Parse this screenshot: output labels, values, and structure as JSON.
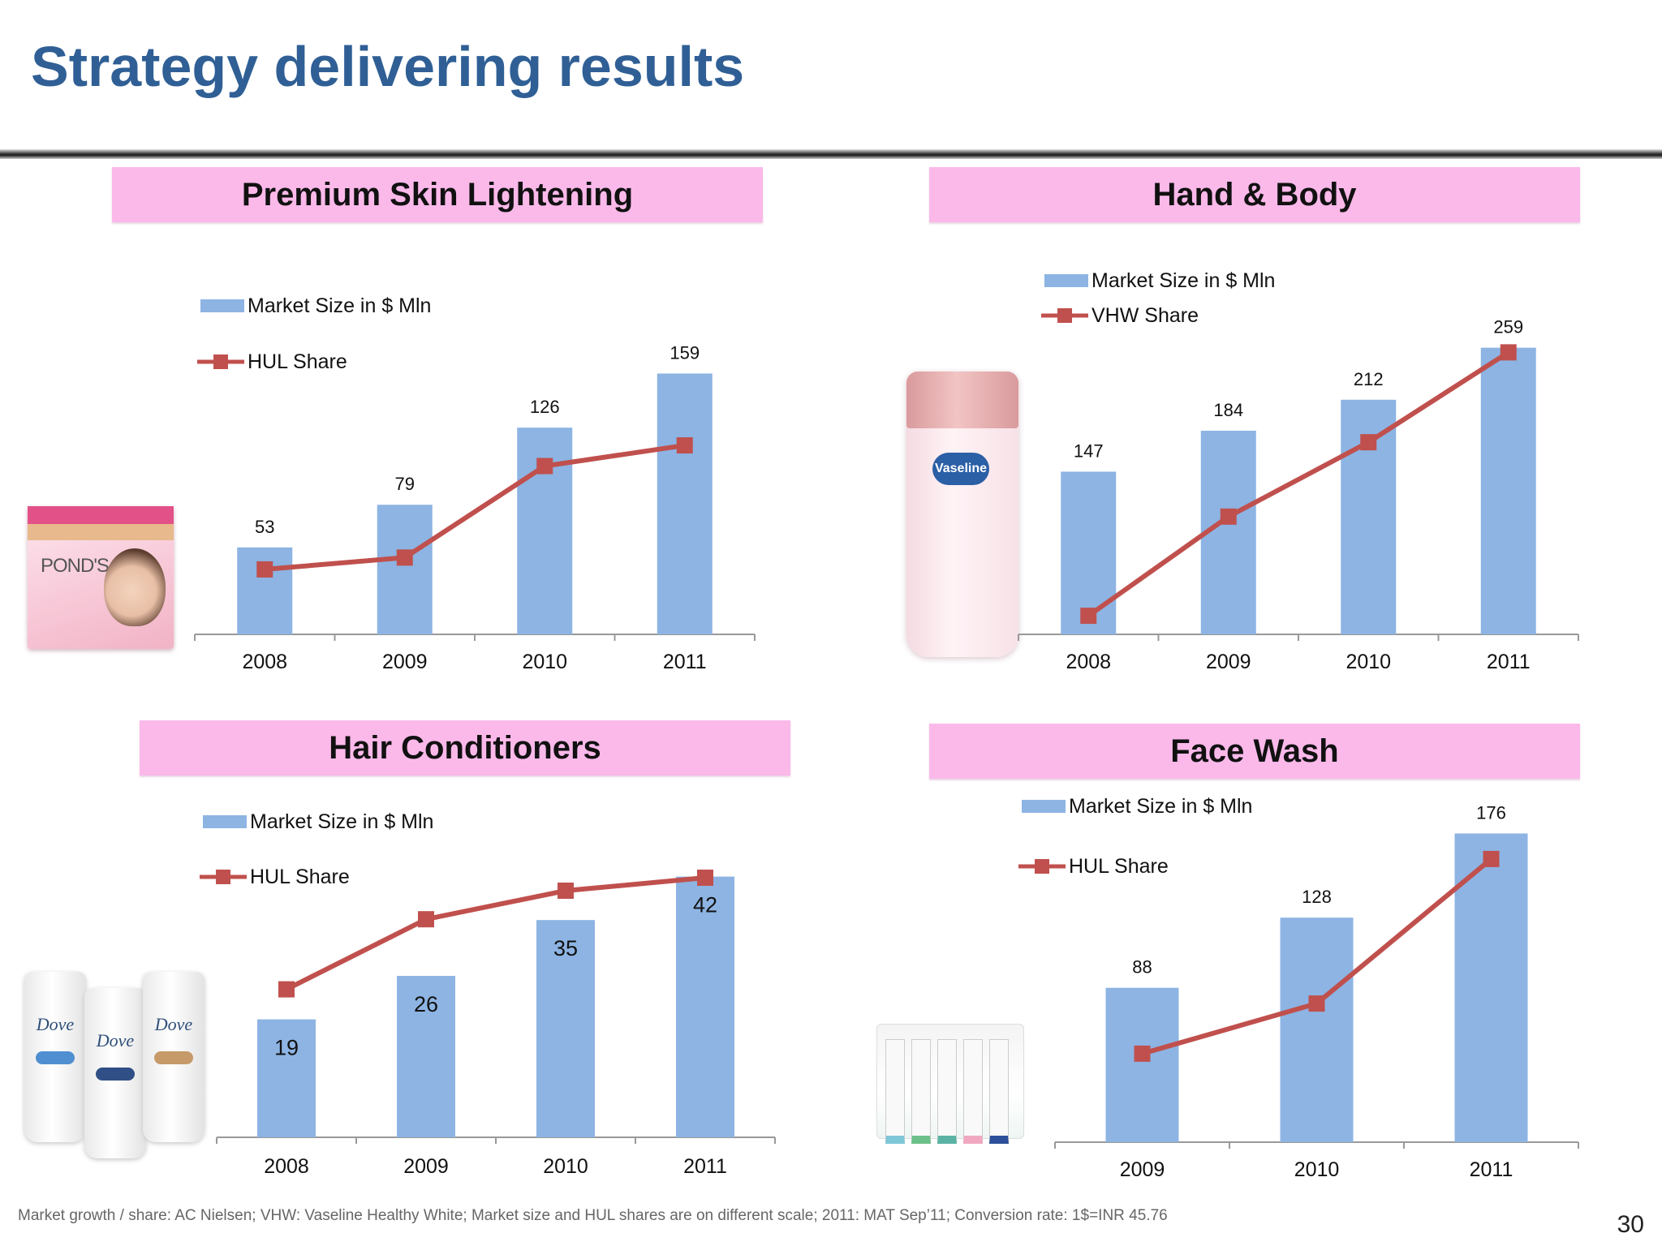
{
  "slide": {
    "title": "Strategy delivering results",
    "footnote": "Market  growth / share: AC Nielsen; VHW: Vaseline Healthy White; Market size and HUL shares are on different scale; 2011: MAT Sep’11; Conversion rate: 1$=INR 45.76",
    "page_number": "30"
  },
  "products": {
    "ponds_brand": "POND'S",
    "vaseline_brand": "Vaseline",
    "dove_brand": "Dove"
  },
  "colors": {
    "bar": "#8db4e3",
    "line": "#c0504d",
    "heading_bg": "#fbb9ea",
    "title": "#2f5f95"
  },
  "chart_data": [
    {
      "type": "bar",
      "title": "Premium Skin Lightening",
      "categories": [
        "2008",
        "2009",
        "2010",
        "2011"
      ],
      "series": [
        {
          "name": "Market Size in $ Mln",
          "type": "bar",
          "values": [
            53,
            79,
            126,
            159
          ]
        },
        {
          "name": "HUL Share",
          "type": "line",
          "values": [
            22,
            26,
            57,
            64
          ]
        }
      ],
      "ylim": [
        0,
        180
      ],
      "line_ylim": [
        0,
        100
      ],
      "legend": "top-left",
      "grid": false,
      "label_position": "above"
    },
    {
      "type": "bar",
      "title": "Hand & Body",
      "categories": [
        "2008",
        "2009",
        "2010",
        "2011"
      ],
      "series": [
        {
          "name": "Market Size in $ Mln",
          "type": "bar",
          "values": [
            147,
            184,
            212,
            259
          ]
        },
        {
          "name": "VHW Share",
          "type": "line",
          "values": [
            6,
            38,
            62,
            91
          ]
        }
      ],
      "ylim": [
        0,
        280
      ],
      "line_ylim": [
        0,
        100
      ],
      "legend": "top-left",
      "grid": false,
      "label_position": "above"
    },
    {
      "type": "bar",
      "title": "Hair Conditioners",
      "categories": [
        "2008",
        "2009",
        "2010",
        "2011"
      ],
      "series": [
        {
          "name": "Market Size in $ Mln",
          "type": "bar",
          "values": [
            19,
            26,
            35,
            42
          ]
        },
        {
          "name": "HUL Share",
          "type": "line",
          "values": [
            57,
            84,
            95,
            100
          ]
        }
      ],
      "ylim": [
        0,
        46
      ],
      "line_ylim": [
        0,
        110
      ],
      "legend": "top-left",
      "grid": false,
      "label_position": "inside"
    },
    {
      "type": "bar",
      "title": "Face Wash",
      "categories": [
        "2009",
        "2010",
        "2011"
      ],
      "series": [
        {
          "name": "Market Size in $ Mln",
          "type": "bar",
          "values": [
            88,
            128,
            176
          ]
        },
        {
          "name": "HUL Share",
          "type": "line",
          "values": [
            30,
            47,
            96
          ]
        }
      ],
      "ylim": [
        0,
        185
      ],
      "line_ylim": [
        0,
        110
      ],
      "legend": "top-left",
      "grid": false,
      "label_position": "above"
    }
  ]
}
